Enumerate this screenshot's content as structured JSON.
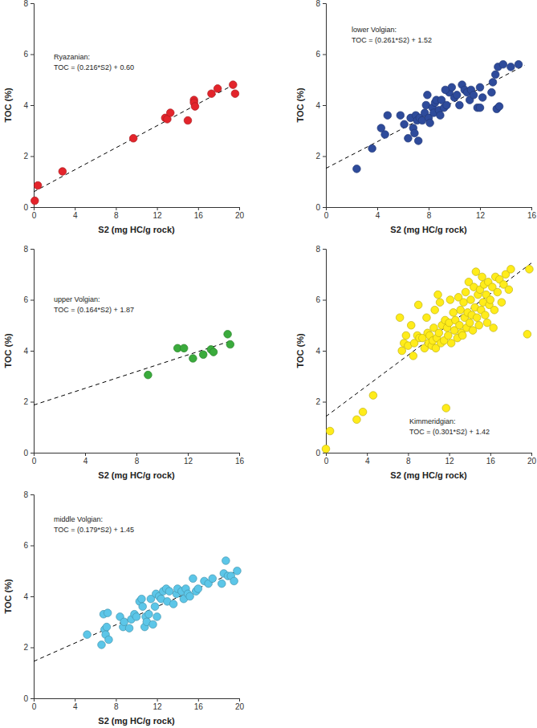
{
  "chart_data": [
    {
      "type": "scatter",
      "title": "Ryazanian:",
      "subtitle": "TOC = (0.216*S2) + 0.60",
      "x_label": "S2 (mg HC/g rock)",
      "y_label": "TOC (%)",
      "xlim": [
        0,
        20
      ],
      "xticks": [
        0,
        4,
        8,
        12,
        16,
        20
      ],
      "ylim": [
        0,
        8
      ],
      "yticks": [
        0,
        2,
        4,
        6,
        8
      ],
      "series": [
        {
          "type": "scatter",
          "marker": "circle",
          "color": "#e3242b",
          "x": [
            0.1,
            0.4,
            2.8,
            9.7,
            12.8,
            13.0,
            13.3,
            15.0,
            15.6,
            15.6,
            15.7,
            17.3,
            17.9,
            19.4,
            19.6
          ],
          "values": [
            0.25,
            0.85,
            1.4,
            2.7,
            3.5,
            3.45,
            3.7,
            3.4,
            4.2,
            4.1,
            3.95,
            4.45,
            4.65,
            4.8,
            4.45
          ]
        },
        {
          "type": "line",
          "line_style": "dashed",
          "color": "#000000",
          "x": [
            0,
            19.5
          ],
          "values": [
            0.6,
            4.81
          ]
        }
      ]
    },
    {
      "type": "scatter",
      "title": "lower Volgian:",
      "subtitle": "TOC = (0.261*S2) + 1.52",
      "x_label": "S2 (mg HC/g rock)",
      "y_label": "TOC (%)",
      "xlim": [
        0,
        16
      ],
      "xticks": [
        0,
        4,
        8,
        12,
        16
      ],
      "ylim": [
        0,
        8
      ],
      "yticks": [
        0,
        2,
        4,
        6,
        8
      ],
      "series": [
        {
          "type": "scatter",
          "marker": "circle",
          "color": "#2e4b9b",
          "x": [
            2.4,
            3.6,
            4.3,
            4.6,
            4.8,
            5.8,
            6.1,
            6.4,
            6.6,
            6.8,
            6.9,
            7.0,
            7.1,
            7.2,
            7.3,
            7.5,
            7.7,
            7.8,
            8.0,
            8.1,
            8.3,
            8.4,
            8.5,
            8.6,
            8.8,
            9.0,
            9.2,
            9.4,
            9.6,
            9.8,
            10.0,
            10.2,
            10.4,
            10.6,
            10.8,
            11.0,
            11.2,
            11.3,
            11.5,
            11.8,
            12.0,
            12.0,
            12.2,
            12.9,
            13.0,
            13.2,
            13.3,
            13.5,
            13.4,
            13.8,
            14.4,
            15.0,
            7.9,
            9.3,
            8.9
          ],
          "values": [
            1.5,
            2.3,
            3.1,
            2.85,
            3.6,
            3.6,
            3.25,
            2.7,
            3.5,
            3.1,
            2.9,
            3.6,
            3.4,
            2.6,
            3.5,
            3.4,
            3.7,
            4.0,
            3.5,
            3.3,
            3.9,
            3.7,
            4.1,
            4.2,
            3.8,
            4.2,
            3.9,
            4.0,
            4.5,
            4.7,
            4.3,
            4.4,
            4.0,
            4.8,
            4.6,
            4.5,
            4.2,
            4.6,
            4.4,
            3.9,
            3.9,
            4.7,
            4.3,
            4.5,
            4.9,
            5.2,
            3.85,
            3.95,
            5.5,
            5.6,
            5.5,
            5.6,
            4.4,
            4.6,
            3.6
          ]
        },
        {
          "type": "line",
          "line_style": "dashed",
          "color": "#000000",
          "x": [
            0,
            15.5
          ],
          "values": [
            1.52,
            5.57
          ]
        }
      ]
    },
    {
      "type": "scatter",
      "title": "upper Volgian:",
      "subtitle": "TOC = (0.164*S2) + 1.87",
      "x_label": "S2 (mg HC/g rock)",
      "y_label": "TOC (%)",
      "xlim": [
        0,
        16
      ],
      "xticks": [
        0,
        4,
        8,
        12,
        16
      ],
      "ylim": [
        0,
        8
      ],
      "yticks": [
        0,
        2,
        4,
        6,
        8
      ],
      "series": [
        {
          "type": "scatter",
          "marker": "circle",
          "color": "#3aab3c",
          "x": [
            8.9,
            11.2,
            11.7,
            12.4,
            13.2,
            13.8,
            14.0,
            15.1,
            15.3
          ],
          "values": [
            3.05,
            4.1,
            4.1,
            3.7,
            3.85,
            4.05,
            3.95,
            4.65,
            4.25
          ]
        },
        {
          "type": "line",
          "line_style": "dashed",
          "color": "#000000",
          "x": [
            0,
            15.5
          ],
          "values": [
            1.87,
            4.41
          ]
        }
      ]
    },
    {
      "type": "scatter",
      "title": "Kimmeridgian:",
      "subtitle": "TOC = (0.301*S2) + 1.42",
      "x_label": "S2 (mg HC/g rock)",
      "y_label": "TOC (%)",
      "xlim": [
        0,
        20
      ],
      "xticks": [
        0,
        4,
        8,
        12,
        16,
        20
      ],
      "ylim": [
        0,
        8
      ],
      "yticks": [
        0,
        2,
        4,
        6,
        8
      ],
      "series": [
        {
          "type": "scatter",
          "marker": "circle",
          "color": "#ffec1a",
          "x": [
            0.0,
            0.4,
            3.0,
            3.6,
            4.6,
            11.7,
            19.6,
            19.8,
            7.2,
            7.4,
            7.6,
            7.8,
            8.0,
            8.3,
            8.5,
            8.6,
            8.9,
            9.0,
            9.1,
            9.4,
            9.6,
            9.8,
            9.9,
            10.0,
            10.1,
            10.3,
            10.4,
            10.5,
            10.6,
            10.7,
            10.8,
            10.9,
            11.0,
            11.1,
            11.2,
            11.3,
            11.5,
            11.6,
            11.8,
            11.9,
            12.0,
            12.1,
            12.2,
            12.4,
            12.5,
            12.6,
            12.8,
            12.9,
            13.0,
            13.1,
            13.2,
            13.4,
            13.5,
            13.6,
            13.7,
            13.8,
            13.9,
            14.0,
            14.1,
            14.2,
            14.3,
            14.4,
            14.5,
            14.6,
            14.7,
            14.8,
            14.9,
            15.0,
            15.1,
            15.2,
            15.3,
            15.4,
            15.5,
            15.6,
            15.7,
            15.8,
            15.9,
            16.0,
            16.2,
            16.4,
            16.5,
            16.7,
            16.9,
            17.1,
            17.3,
            17.5,
            17.8,
            18.0,
            16.3,
            13.3
          ],
          "values": [
            0.15,
            0.85,
            1.3,
            1.6,
            2.25,
            1.75,
            4.65,
            7.2,
            5.3,
            4.0,
            4.3,
            4.6,
            4.2,
            5.0,
            3.8,
            4.3,
            4.6,
            5.8,
            4.5,
            4.5,
            4.1,
            5.3,
            4.7,
            4.3,
            4.6,
            4.2,
            4.4,
            4.9,
            5.6,
            4.1,
            4.5,
            6.2,
            4.7,
            5.9,
            4.3,
            5.0,
            4.4,
            5.2,
            4.9,
            4.6,
            5.1,
            6.0,
            4.3,
            5.5,
            4.8,
            5.2,
            4.5,
            6.1,
            5.0,
            5.6,
            4.7,
            5.9,
            5.3,
            6.3,
            4.9,
            5.5,
            6.7,
            5.1,
            6.0,
            5.4,
            4.8,
            6.5,
            5.7,
            7.1,
            5.3,
            6.2,
            5.0,
            6.4,
            5.6,
            6.9,
            5.9,
            6.6,
            5.4,
            6.2,
            5.1,
            6.7,
            5.8,
            6.0,
            6.5,
            5.6,
            6.9,
            6.3,
            6.8,
            5.9,
            6.6,
            7.0,
            6.4,
            7.2,
            4.9,
            4.6
          ]
        },
        {
          "type": "line",
          "line_style": "dashed",
          "color": "#000000",
          "x": [
            0,
            20
          ],
          "values": [
            1.42,
            7.44
          ]
        }
      ]
    },
    {
      "type": "scatter",
      "title": "middle Volgian:",
      "subtitle": "TOC = (0.179*S2) + 1.45",
      "x_label": "S2 (mg HC/g rock)",
      "y_label": "TOC (%)",
      "xlim": [
        0,
        20
      ],
      "xticks": [
        0,
        4,
        8,
        12,
        16,
        20
      ],
      "ylim": [
        0,
        8
      ],
      "yticks": [
        0,
        2,
        4,
        6,
        8
      ],
      "series": [
        {
          "type": "scatter",
          "marker": "circle",
          "color": "#5cc6e8",
          "x": [
            5.2,
            6.6,
            6.8,
            6.9,
            7.0,
            7.2,
            7.3,
            8.4,
            8.7,
            8.8,
            9.3,
            9.5,
            9.8,
            10.0,
            10.3,
            10.5,
            10.6,
            10.8,
            10.9,
            11.0,
            11.2,
            11.4,
            11.6,
            11.8,
            11.9,
            12.0,
            12.2,
            12.4,
            12.6,
            12.9,
            13.0,
            13.2,
            13.6,
            13.9,
            14.0,
            14.4,
            14.6,
            14.8,
            15.0,
            15.2,
            15.5,
            15.8,
            16.0,
            16.6,
            17.0,
            17.4,
            18.3,
            18.5,
            18.7,
            18.9,
            19.2,
            19.5,
            19.8,
            7.1
          ],
          "values": [
            2.5,
            2.1,
            3.3,
            2.7,
            2.5,
            3.35,
            2.3,
            3.2,
            2.8,
            3.0,
            2.75,
            3.1,
            3.3,
            3.2,
            3.8,
            3.9,
            3.6,
            2.8,
            3.2,
            3.0,
            3.3,
            3.9,
            2.9,
            3.6,
            4.1,
            3.2,
            4.0,
            3.9,
            4.2,
            4.3,
            3.8,
            4.2,
            3.7,
            4.1,
            4.3,
            4.2,
            3.9,
            4.3,
            4.1,
            4.0,
            4.7,
            4.2,
            4.3,
            4.6,
            4.5,
            4.7,
            4.5,
            4.9,
            5.4,
            4.8,
            4.8,
            4.6,
            5.0,
            2.8
          ]
        },
        {
          "type": "line",
          "line_style": "dashed",
          "color": "#000000",
          "x": [
            0,
            20
          ],
          "values": [
            1.45,
            5.03
          ]
        }
      ]
    }
  ]
}
